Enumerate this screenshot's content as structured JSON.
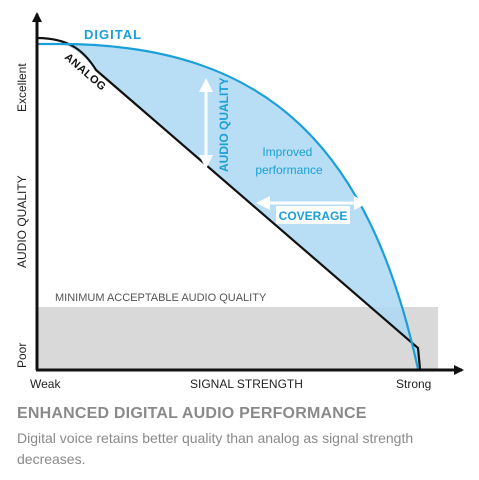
{
  "diagram": {
    "y_axis": {
      "title": "AUDIO QUALITY",
      "top_label": "Excellent",
      "bottom_label": "Poor"
    },
    "x_axis": {
      "title": "SIGNAL STRENGTH",
      "left_label": "Weak",
      "right_label": "Strong"
    },
    "threshold_label": "MINIMUM ACCEPTABLE AUDIO QUALITY",
    "series": {
      "digital": "DIGITAL",
      "analog": "ANALOG"
    },
    "improved_lines": [
      "Improved",
      "performance"
    ],
    "audio_quality_arrow_label": "AUDIO QUALITY",
    "coverage_arrow_label": "COVERAGE",
    "colors": {
      "digital": "#1a9fd8",
      "fill": "#aad8f2",
      "threshold": "#d9d9d9",
      "axis": "#111111"
    }
  },
  "caption": {
    "title": "ENHANCED DIGITAL AUDIO PERFORMANCE",
    "body": "Digital voice retains better quality than analog as signal strength decreases."
  }
}
